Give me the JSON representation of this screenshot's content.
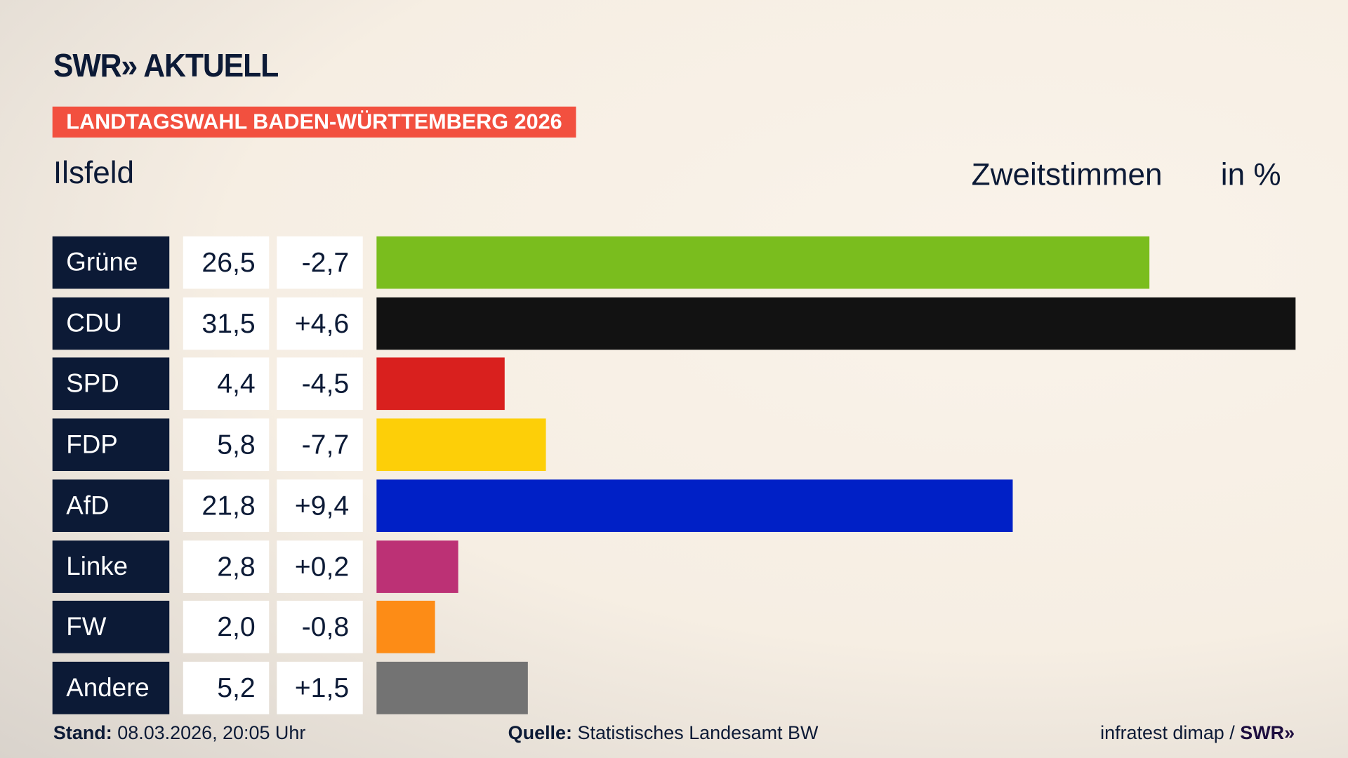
{
  "header": {
    "logo": "SWR» AKTUELL",
    "banner": "LANDTAGSWAHL BADEN-WÜRTTEMBERG 2026",
    "place": "Ilsfeld",
    "metric": "Zweitstimmen",
    "unit": "in %"
  },
  "chart_data": {
    "type": "bar",
    "orientation": "horizontal",
    "categories": [
      "Grüne",
      "CDU",
      "SPD",
      "FDP",
      "AfD",
      "Linke",
      "FW",
      "Andere"
    ],
    "values": [
      26.5,
      31.5,
      4.4,
      5.8,
      21.8,
      2.8,
      2.0,
      5.2
    ],
    "value_labels": [
      "26,5",
      "31,5",
      "4,4",
      "5,8",
      "21,8",
      "2,8",
      "2,0",
      "5,2"
    ],
    "change_labels": [
      "-2,7",
      "+4,6",
      "-4,5",
      "-7,7",
      "+9,4",
      "+0,2",
      "-0,8",
      "+1,5"
    ],
    "changes": [
      -2.7,
      4.6,
      -4.5,
      -7.7,
      9.4,
      0.2,
      -0.8,
      1.5
    ],
    "colors": [
      "#7abd1e",
      "#121212",
      "#d9201e",
      "#fdcf08",
      "#0020c6",
      "#bc3175",
      "#fd8c16",
      "#737373"
    ],
    "xlim": [
      0,
      31.5
    ],
    "grid": false
  },
  "footer": {
    "stand_label": "Stand:",
    "stand_value": "08.03.2026, 20:05 Uhr",
    "source_label": "Quelle:",
    "source_value": "Statistisches Landesamt BW",
    "credit": "infratest dimap / ",
    "credit_logo": "SWR»"
  }
}
